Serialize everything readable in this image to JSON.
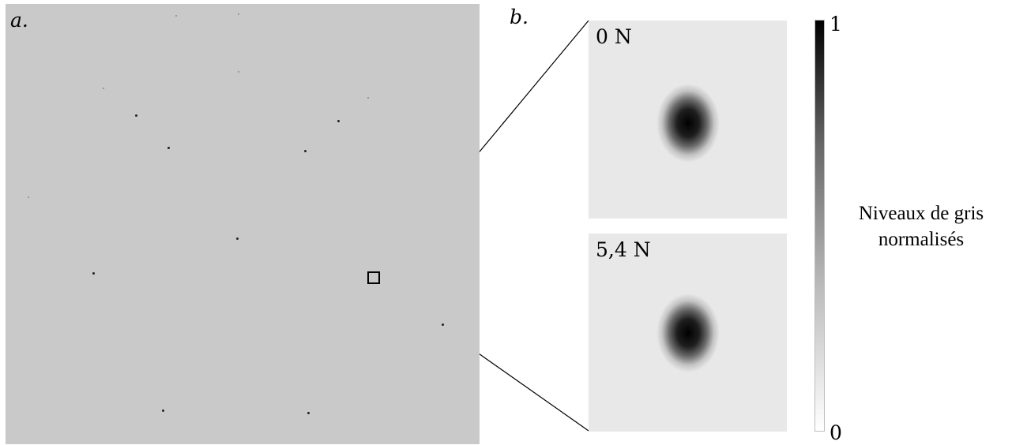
{
  "panel_a": {
    "label": "a."
  },
  "panel_b": {
    "label": "b.",
    "insets": [
      {
        "label": "0 N"
      },
      {
        "label": "5,4 N"
      }
    ]
  },
  "colorbar": {
    "max_label": "1",
    "min_label": "0",
    "title_line1": "Niveaux de gris",
    "title_line2": "normalisés"
  },
  "colors": {
    "background": "#c9c9c9",
    "inset_background": "#e8e8e8",
    "spot": "#000000"
  }
}
